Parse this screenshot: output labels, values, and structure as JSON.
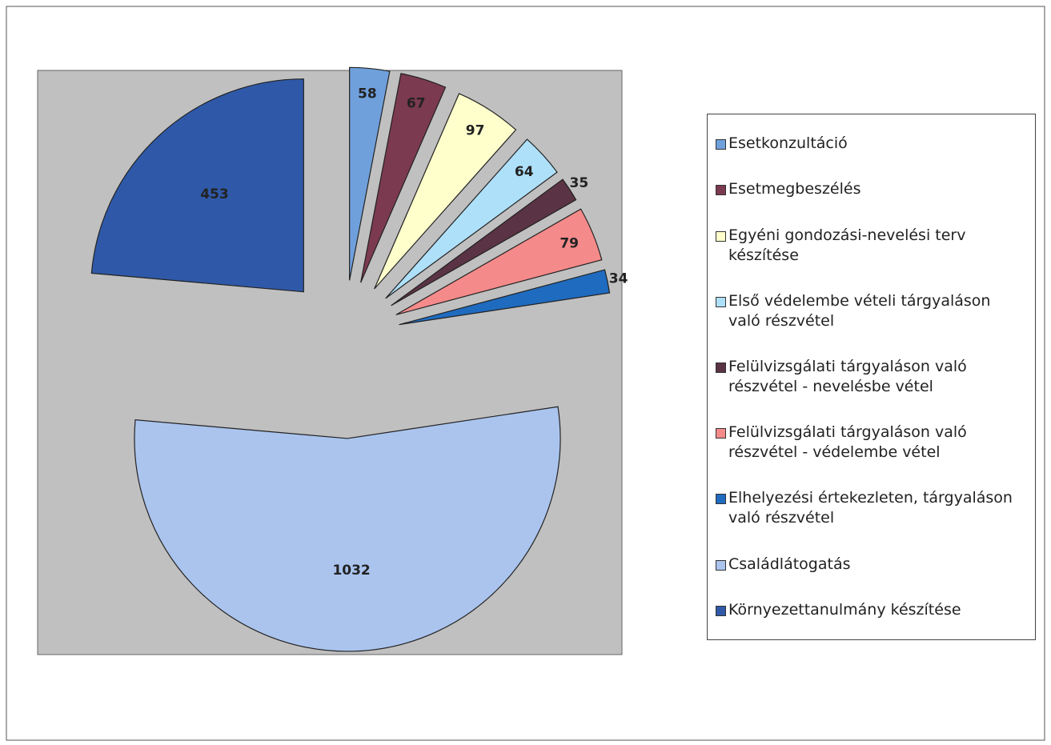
{
  "chart_data": {
    "type": "pie",
    "categories": [
      "Esetkonzultáció",
      "Esetmegbeszélés",
      "Egyéni gondozási-nevelési terv készítése",
      "Első védelembe vételi tárgyaláson való részvétel",
      "Felülvizsgálati tárgyaláson való részvétel - nevelésbe vétel",
      "Felülvizsgálati tárgyaláson való részvétel - védelembe vétel",
      "Elhelyezési értekezleten, tárgyaláson való részvétel",
      "Családlátogatás",
      "Környezettanulmány készítése"
    ],
    "values": [
      58,
      67,
      97,
      64,
      35,
      79,
      34,
      1032,
      453
    ],
    "colors": [
      "#6fa0dc",
      "#7b3a4f",
      "#ffffcc",
      "#aee0fa",
      "#5a3344",
      "#f58a8a",
      "#1f6bbf",
      "#aac4ee",
      "#2f59a8"
    ],
    "legend": "right"
  }
}
